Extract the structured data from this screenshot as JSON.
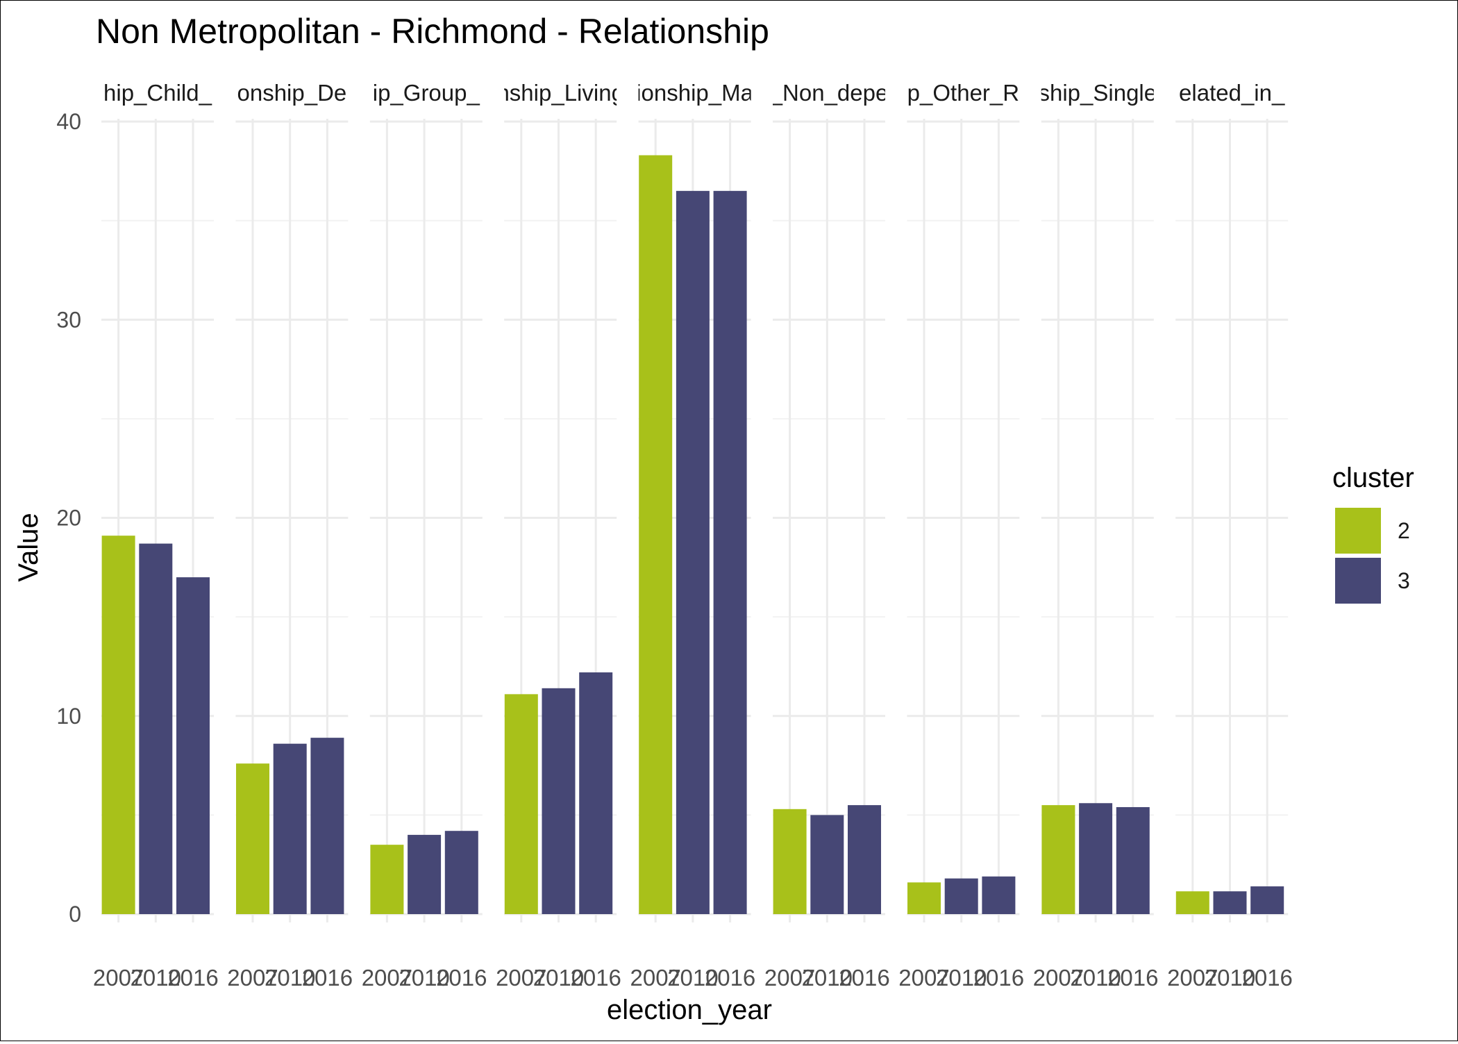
{
  "chart_data": {
    "type": "bar",
    "title": "Non Metropolitan - Richmond - Relationship",
    "xlabel": "election_year",
    "ylabel": "Value",
    "ylim": [
      0,
      40
    ],
    "yticks": [
      0,
      10,
      20,
      30,
      40
    ],
    "grid": true,
    "legend": {
      "title": "cluster",
      "position": "right",
      "entries": [
        {
          "label": "2",
          "color": "#A8C11A"
        },
        {
          "label": "3",
          "color": "#464775"
        }
      ]
    },
    "categories": [
      "2007",
      "2010",
      "2016"
    ],
    "panels": [
      {
        "label": "hip_Child_",
        "values": [
          19.1,
          18.7,
          17.0
        ],
        "clusters": [
          "2",
          "3",
          "3"
        ]
      },
      {
        "label": "onship_De",
        "values": [
          7.6,
          8.6,
          8.9
        ],
        "clusters": [
          "2",
          "3",
          "3"
        ]
      },
      {
        "label": "ip_Group_",
        "values": [
          3.5,
          4.0,
          4.2
        ],
        "clusters": [
          "2",
          "3",
          "3"
        ]
      },
      {
        "label": "nship_Living",
        "values": [
          11.1,
          11.4,
          12.2
        ],
        "clusters": [
          "2",
          "3",
          "3"
        ]
      },
      {
        "label": "ionship_Ma",
        "values": [
          38.3,
          36.5,
          36.5
        ],
        "clusters": [
          "2",
          "3",
          "3"
        ]
      },
      {
        "label": "_Non_depe",
        "values": [
          5.3,
          5.0,
          5.5
        ],
        "clusters": [
          "2",
          "3",
          "3"
        ]
      },
      {
        "label": "p_Other_R",
        "values": [
          1.6,
          1.8,
          1.9
        ],
        "clusters": [
          "2",
          "3",
          "3"
        ]
      },
      {
        "label": "ship_Single",
        "values": [
          5.5,
          5.6,
          5.4
        ],
        "clusters": [
          "2",
          "3",
          "3"
        ]
      },
      {
        "label": "elated_in_",
        "values": [
          1.15,
          1.15,
          1.4
        ],
        "clusters": [
          "2",
          "3",
          "3"
        ]
      }
    ]
  }
}
